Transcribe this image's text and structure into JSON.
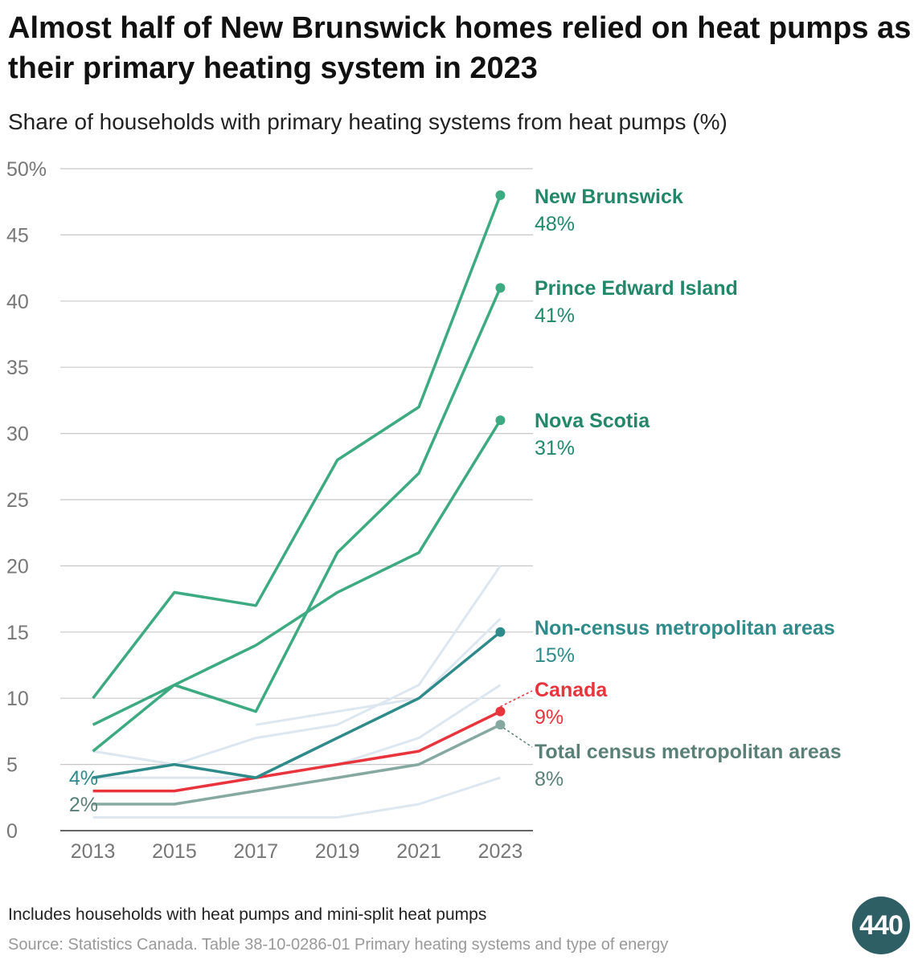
{
  "title": "Almost half of New Brunswick homes relied on heat pumps as their primary heating system in 2023",
  "subtitle": "Share of households with primary heating systems from heat pumps (%)",
  "note": "Includes households with heat pumps and mini-split heat pumps",
  "source": "Source: Statistics Canada. Table 38-10-0286-01 Primary heating systems and type of energy",
  "logo_text": "440",
  "colors": {
    "green": "#3daa82",
    "green_label": "#23886a",
    "teal": "#2f8a8a",
    "red": "#e8343d",
    "gray_teal": "#85a8a0",
    "gray_label": "#5a8078",
    "light": "#dde7f0",
    "grid": "#c8c8c8",
    "axis_text": "#777777"
  },
  "chart_data": {
    "type": "line",
    "x": [
      2013,
      2015,
      2017,
      2019,
      2021,
      2023
    ],
    "xlim": [
      2012.2,
      2023.8
    ],
    "ylim": [
      0,
      50
    ],
    "yticks": [
      0,
      5,
      10,
      15,
      20,
      25,
      30,
      35,
      40,
      45,
      50
    ],
    "ytick_labels": [
      "0",
      "5",
      "10",
      "15",
      "20",
      "25",
      "30",
      "35",
      "40",
      "45",
      "50%"
    ],
    "xtick_labels": [
      "2013",
      "2015",
      "2017",
      "2019",
      "2021",
      "2023"
    ],
    "grid": true,
    "highlighted_series": [
      {
        "name": "New Brunswick",
        "end_label": "48%",
        "color_key": "green",
        "label_color_key": "green_label",
        "values": [
          10,
          18,
          17,
          28,
          32,
          48
        ]
      },
      {
        "name": "Prince Edward Island",
        "end_label": "41%",
        "color_key": "green",
        "label_color_key": "green_label",
        "values": [
          6,
          11,
          9,
          21,
          27,
          41
        ]
      },
      {
        "name": "Nova Scotia",
        "end_label": "31%",
        "color_key": "green",
        "label_color_key": "green_label",
        "values": [
          8,
          11,
          14,
          18,
          21,
          31
        ]
      },
      {
        "name": "Non-census metropolitan areas",
        "end_label": "15%",
        "start_label": "4%",
        "color_key": "teal",
        "label_color_key": "teal",
        "values": [
          4,
          5,
          4,
          7,
          10,
          15
        ]
      },
      {
        "name": "Canada",
        "end_label": "9%",
        "color_key": "red",
        "label_color_key": "red",
        "values": [
          3,
          3,
          4,
          5,
          6,
          9
        ]
      },
      {
        "name": "Total census metropolitan areas",
        "end_label": "8%",
        "start_label": "2%",
        "color_key": "gray_teal",
        "label_color_key": "gray_label",
        "values": [
          2,
          2,
          3,
          4,
          5,
          8
        ]
      }
    ],
    "background_series": [
      {
        "values": [
          6,
          5,
          7,
          8,
          11,
          20
        ]
      },
      {
        "values": [
          null,
          null,
          8,
          9,
          10,
          16
        ]
      },
      {
        "values": [
          4,
          4,
          4,
          5,
          7,
          11
        ]
      },
      {
        "values": [
          1,
          1,
          1,
          1,
          2,
          4
        ]
      }
    ]
  }
}
